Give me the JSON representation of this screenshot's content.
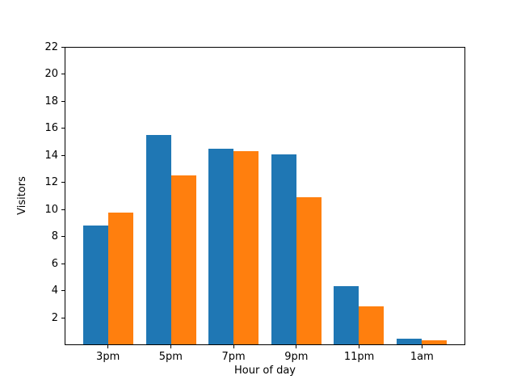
{
  "figure": {
    "background_color": "#ffffff",
    "axes_edge_color": "#000000",
    "tick_color": "#000000"
  },
  "chart_data": {
    "type": "bar",
    "title": "",
    "xlabel": "Hour of day",
    "ylabel": "Visitors",
    "categories": [
      "3pm",
      "5pm",
      "7pm",
      "9pm",
      "11pm",
      "1am"
    ],
    "series": [
      {
        "name": "series-1-blue",
        "color": "#1f77b4",
        "values": [
          8.8,
          15.5,
          14.5,
          14.1,
          4.3,
          0.4
        ]
      },
      {
        "name": "series-2-orange",
        "color": "#ff7f0e",
        "values": [
          9.8,
          12.5,
          14.3,
          10.9,
          2.8,
          0.3
        ]
      }
    ],
    "bar_width": 0.4,
    "ylim": [
      0,
      22
    ],
    "yticks": [
      2,
      4,
      6,
      8,
      10,
      12,
      14,
      16,
      18,
      20,
      22
    ],
    "xlim": [
      -0.69,
      5.69
    ],
    "grid": false,
    "legend_position": "none"
  }
}
